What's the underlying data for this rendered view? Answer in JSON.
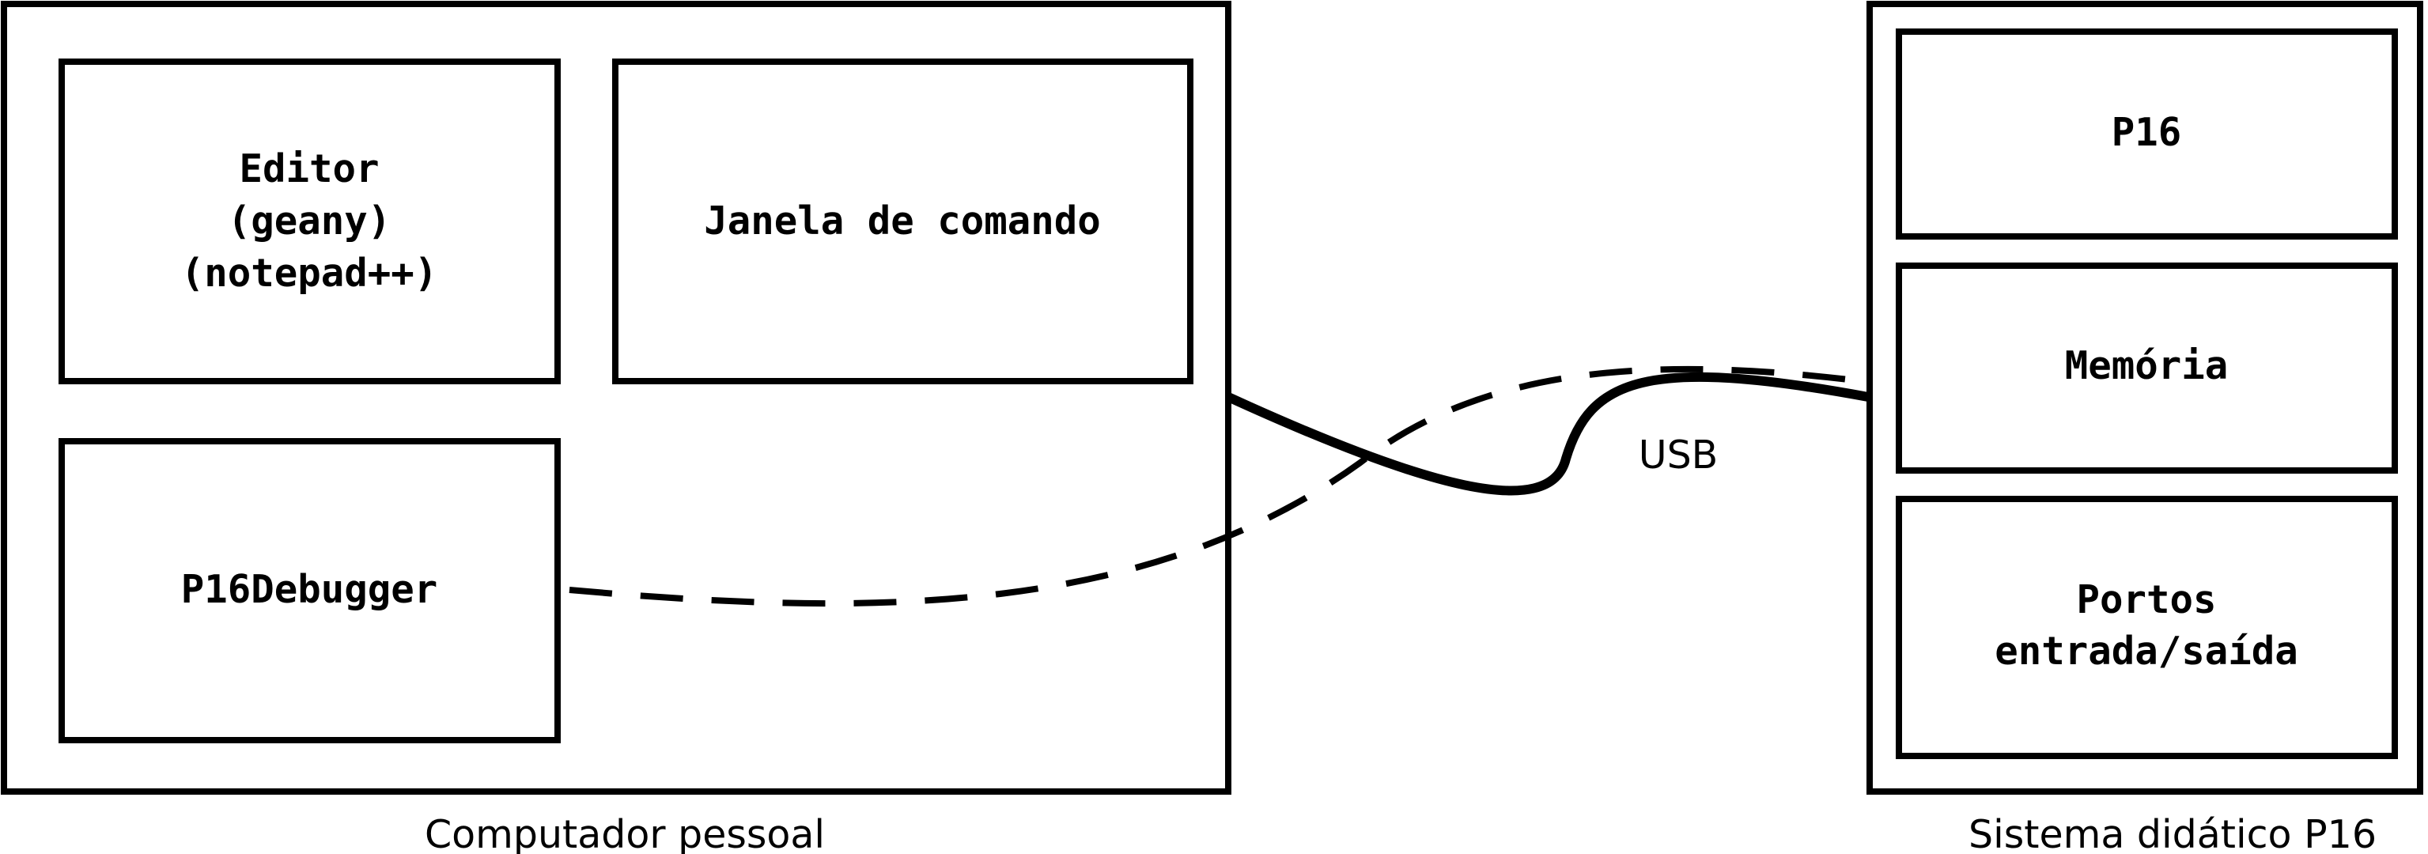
{
  "computer": {
    "caption": "Computador pessoal",
    "editor": {
      "line1": "Editor",
      "line2": "(geany)",
      "line3": "(notepad++)"
    },
    "command_window": "Janela de comando",
    "debugger": "P16Debugger"
  },
  "connection": {
    "label": "USB"
  },
  "p16_system": {
    "caption": "Sistema didático P16",
    "cpu": "P16",
    "memory": "Memória",
    "io_ports": {
      "line1": "Portos",
      "line2": "entrada/saída"
    }
  }
}
